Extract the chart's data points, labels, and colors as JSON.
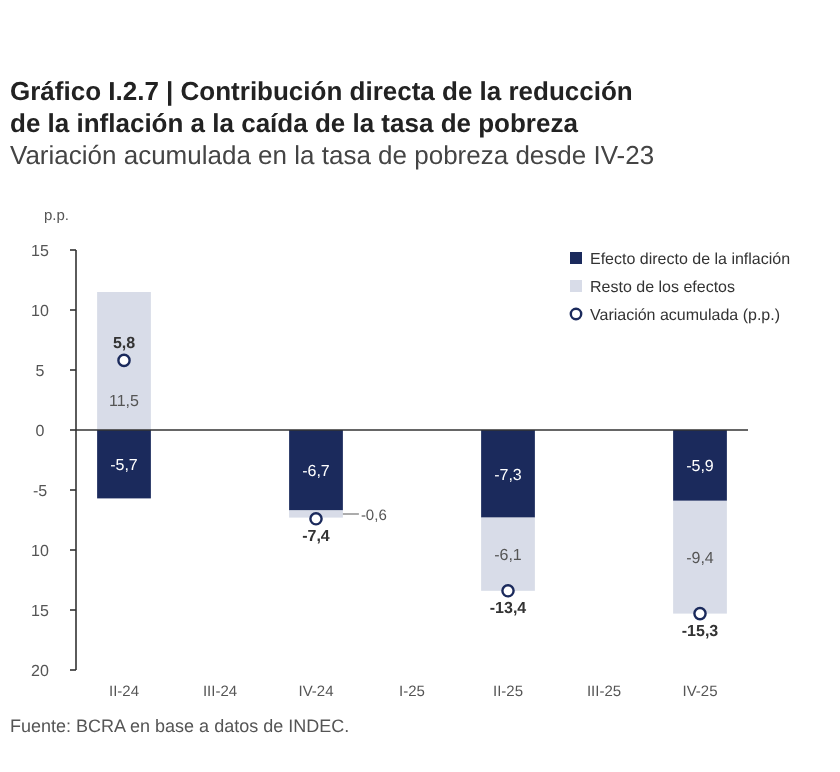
{
  "chart_data": {
    "type": "bar",
    "title": "Gráfico I.2.7 | Contribución directa de la reducción\nde la inflación a la caída de la tasa de pobreza",
    "subtitle": "Variación acumulada en la tasa de pobreza desde IV-23",
    "ylabel": "p.p.",
    "categories": [
      "II-24",
      "III-24",
      "IV-24",
      "I-25",
      "II-25",
      "III-25",
      "IV-25"
    ],
    "stacked": true,
    "series": [
      {
        "name": "Efecto directo de la inflación",
        "color": "#1b2a5c",
        "values": [
          -5.7,
          null,
          -6.7,
          null,
          -7.3,
          null,
          -5.9
        ],
        "value_labels": [
          "-5,7",
          null,
          "-6,7",
          null,
          "-7,3",
          null,
          "-5,9"
        ]
      },
      {
        "name": "Resto de los efectos",
        "color": "#d8dce8",
        "values": [
          11.5,
          null,
          -0.6,
          null,
          -6.1,
          null,
          -9.4
        ],
        "value_labels": [
          "11,5",
          null,
          "-0,6",
          null,
          "-6,1",
          null,
          "-9,4"
        ]
      },
      {
        "name": "Variación acumulada (p.p.)",
        "type": "scatter",
        "marker": "circle",
        "color": "#1b2a5c",
        "values": [
          5.8,
          null,
          -7.4,
          null,
          -13.4,
          null,
          -15.3
        ],
        "value_labels": [
          "5,8",
          null,
          "-7,4",
          null,
          "-13,4",
          null,
          "-15,3"
        ]
      }
    ],
    "ylim": [
      -20,
      15
    ],
    "yticks": [
      15,
      10,
      5,
      0,
      -5,
      {
        "value": -10,
        "label": "10"
      },
      {
        "value": -15,
        "label": "15"
      },
      {
        "value": -20,
        "label": "20"
      }
    ],
    "legend": "top right",
    "annotations": [
      "Fuente: BCRA en base a datos de INDEC."
    ]
  }
}
